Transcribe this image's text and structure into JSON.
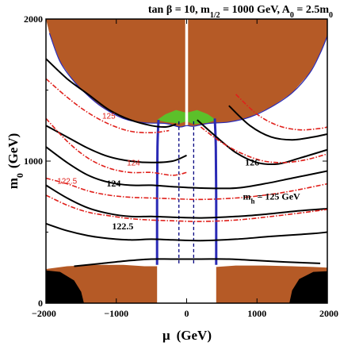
{
  "chart_data": {
    "type": "contour",
    "title_parts": {
      "t1": "tan β = 10, m",
      "t1_sub": "1/2",
      "t2": " = 1000 GeV, A",
      "t2_sub": "0",
      "t3": " = 2.5m",
      "t3_sub": "0"
    },
    "xlabel": "μ",
    "xlabel_unit": "(GeV)",
    "ylabel_main": "m",
    "ylabel_sub": "0",
    "ylabel_unit": "(GeV)",
    "xlim": [
      -2000,
      2000
    ],
    "ylim": [
      0,
      2000
    ],
    "x_ticks": [
      {
        "value": -2000,
        "label": "−2000"
      },
      {
        "value": -1000,
        "label": "−1000"
      },
      {
        "value": 0,
        "label": "0"
      },
      {
        "value": 1000,
        "label": "1000"
      },
      {
        "value": 2000,
        "label": "2000"
      }
    ],
    "y_ticks": [
      {
        "value": 0,
        "label": "0"
      },
      {
        "value": 1000,
        "label": "1000"
      },
      {
        "value": 2000,
        "label": "2000"
      }
    ],
    "colors": {
      "excluded": "#b55a26",
      "black_region": "#000000",
      "dark_matter_strip": "#2a2ab5",
      "green_region": "#5cc02a",
      "contour_black": "#000000",
      "contour_red": "#e0201b",
      "dashed_lines": "#000080"
    },
    "contour_labels": {
      "black": [
        {
          "text": "126",
          "x": 830,
          "y": 970
        },
        {
          "text": "124",
          "x": -1140,
          "y": 820
        },
        {
          "text": "122.5",
          "x": -1060,
          "y": 520
        }
      ],
      "mh": {
        "main": "m",
        "sub": "h",
        "rest": " = 125 GeV",
        "x": 800,
        "y": 730
      },
      "red": [
        {
          "text": "125",
          "x": -1200,
          "y": 1300
        },
        {
          "text": "124",
          "x": -850,
          "y": 970
        },
        {
          "text": "122.5",
          "x": -1840,
          "y": 840
        }
      ]
    },
    "contours": {
      "black": [
        [
          [
            -2000,
            1720
          ],
          [
            -1700,
            1580
          ],
          [
            -1400,
            1470
          ],
          [
            -1100,
            1360
          ],
          [
            -800,
            1290
          ],
          [
            -500,
            1250
          ],
          [
            -300,
            1240
          ],
          [
            -150,
            1260
          ]
        ],
        [
          [
            -2000,
            1250
          ],
          [
            -1700,
            1170
          ],
          [
            -1400,
            1090
          ],
          [
            -1100,
            1030
          ],
          [
            -800,
            1000
          ],
          [
            -500,
            990
          ],
          [
            -200,
            1000
          ],
          [
            0,
            1040
          ]
        ],
        [
          [
            -2000,
            1100
          ],
          [
            -1700,
            990
          ],
          [
            -1400,
            900
          ],
          [
            -1100,
            850
          ],
          [
            -800,
            830
          ],
          [
            -500,
            830
          ],
          [
            -200,
            820
          ],
          [
            200,
            810
          ],
          [
            700,
            810
          ],
          [
            1100,
            840
          ],
          [
            1500,
            880
          ],
          [
            2000,
            930
          ]
        ],
        [
          [
            -2000,
            830
          ],
          [
            -1700,
            740
          ],
          [
            -1400,
            670
          ],
          [
            -1100,
            630
          ],
          [
            -800,
            610
          ],
          [
            -500,
            610
          ],
          [
            -200,
            605
          ],
          [
            200,
            600
          ],
          [
            700,
            610
          ],
          [
            1100,
            625
          ],
          [
            1600,
            650
          ],
          [
            2000,
            665
          ]
        ],
        [
          [
            -2000,
            560
          ],
          [
            -1700,
            510
          ],
          [
            -1400,
            475
          ],
          [
            -1100,
            455
          ],
          [
            -800,
            445
          ],
          [
            -500,
            450
          ],
          [
            -200,
            445
          ],
          [
            200,
            440
          ],
          [
            700,
            450
          ],
          [
            1200,
            470
          ],
          [
            1800,
            490
          ],
          [
            2000,
            500
          ]
        ],
        [
          [
            -1600,
            260
          ],
          [
            -1200,
            280
          ],
          [
            -800,
            300
          ],
          [
            -500,
            310
          ],
          [
            -200,
            310
          ],
          [
            200,
            310
          ],
          [
            600,
            310
          ],
          [
            1000,
            300
          ],
          [
            1400,
            290
          ],
          [
            1900,
            280
          ]
        ],
        [
          [
            150,
            1290
          ],
          [
            400,
            1180
          ],
          [
            700,
            1060
          ],
          [
            1000,
            990
          ],
          [
            1300,
            980
          ],
          [
            1600,
            1020
          ],
          [
            2000,
            1080
          ]
        ],
        [
          [
            600,
            1390
          ],
          [
            900,
            1250
          ],
          [
            1200,
            1170
          ],
          [
            1500,
            1150
          ],
          [
            1800,
            1170
          ],
          [
            2000,
            1190
          ]
        ]
      ],
      "red": [
        [
          [
            -2000,
            1580
          ],
          [
            -1700,
            1450
          ],
          [
            -1400,
            1340
          ],
          [
            -1100,
            1260
          ],
          [
            -800,
            1210
          ],
          [
            -500,
            1200
          ],
          [
            -250,
            1215
          ]
        ],
        [
          [
            -2000,
            1300
          ],
          [
            -1700,
            1140
          ],
          [
            -1400,
            1020
          ],
          [
            -1100,
            950
          ],
          [
            -800,
            920
          ],
          [
            -500,
            920
          ],
          [
            -200,
            900
          ],
          [
            0,
            920
          ]
        ],
        [
          [
            -2000,
            880
          ],
          [
            -1700,
            840
          ],
          [
            -1400,
            790
          ],
          [
            -1100,
            760
          ],
          [
            -800,
            745
          ],
          [
            -500,
            740
          ],
          [
            -200,
            735
          ],
          [
            200,
            730
          ],
          [
            700,
            740
          ],
          [
            1100,
            760
          ],
          [
            1500,
            790
          ],
          [
            2000,
            840
          ]
        ],
        [
          [
            -2000,
            760
          ],
          [
            -1700,
            690
          ],
          [
            -1400,
            640
          ],
          [
            -1100,
            615
          ],
          [
            -800,
            595
          ],
          [
            -500,
            585
          ],
          [
            -200,
            580
          ],
          [
            200,
            575
          ],
          [
            700,
            585
          ],
          [
            1200,
            610
          ],
          [
            1700,
            640
          ],
          [
            2000,
            660
          ]
        ],
        [
          [
            200,
            1240
          ],
          [
            500,
            1130
          ],
          [
            800,
            1050
          ],
          [
            1100,
            1000
          ],
          [
            1400,
            990
          ],
          [
            1700,
            1010
          ],
          [
            2000,
            1050
          ]
        ],
        [
          [
            700,
            1470
          ],
          [
            1000,
            1330
          ],
          [
            1300,
            1250
          ],
          [
            1600,
            1220
          ],
          [
            1900,
            1230
          ],
          [
            2000,
            1240
          ]
        ]
      ]
    },
    "excluded_top": [
      [
        -2000,
        2000
      ],
      [
        -1950,
        1900
      ],
      [
        -1800,
        1700
      ],
      [
        -1600,
        1560
      ],
      [
        -1400,
        1460
      ],
      [
        -1200,
        1380
      ],
      [
        -900,
        1300
      ],
      [
        -600,
        1270
      ],
      [
        -300,
        1265
      ],
      [
        -100,
        1240
      ],
      [
        0,
        1250
      ],
      [
        100,
        1245
      ],
      [
        300,
        1265
      ],
      [
        600,
        1275
      ],
      [
        900,
        1310
      ],
      [
        1200,
        1380
      ],
      [
        1500,
        1480
      ],
      [
        1750,
        1620
      ],
      [
        1900,
        1760
      ],
      [
        2000,
        1880
      ],
      [
        2000,
        2000
      ]
    ],
    "excluded_bottom_left": [
      [
        -2000,
        0
      ],
      [
        -2000,
        240
      ],
      [
        -1700,
        260
      ],
      [
        -1300,
        270
      ],
      [
        -900,
        270
      ],
      [
        -600,
        260
      ],
      [
        -420,
        260
      ],
      [
        -420,
        0
      ]
    ],
    "excluded_bottom_right": [
      [
        420,
        0
      ],
      [
        420,
        255
      ],
      [
        700,
        265
      ],
      [
        1100,
        265
      ],
      [
        1500,
        260
      ],
      [
        1800,
        255
      ],
      [
        2000,
        250
      ],
      [
        2000,
        0
      ]
    ],
    "black_bottom_left": [
      [
        -2000,
        0
      ],
      [
        -2000,
        230
      ],
      [
        -1800,
        220
      ],
      [
        -1600,
        160
      ],
      [
        -1500,
        80
      ],
      [
        -1460,
        0
      ]
    ],
    "black_bottom_right": [
      [
        1460,
        0
      ],
      [
        1500,
        90
      ],
      [
        1600,
        170
      ],
      [
        1800,
        220
      ],
      [
        2000,
        225
      ],
      [
        2000,
        0
      ]
    ],
    "blue_strips": [
      [
        [
          -420,
          270
        ],
        [
          -420,
          700
        ],
        [
          -415,
          1100
        ],
        [
          -400,
          1290
        ]
      ],
      [
        [
          420,
          270
        ],
        [
          420,
          700
        ],
        [
          415,
          1100
        ],
        [
          400,
          1300
        ]
      ]
    ],
    "dashed_verticals": [
      -110,
      100
    ],
    "white_band": [
      -20,
      20
    ],
    "green_blob": [
      [
        -420,
        1290
      ],
      [
        -300,
        1330
      ],
      [
        -150,
        1360
      ],
      [
        0,
        1340
      ],
      [
        150,
        1360
      ],
      [
        300,
        1330
      ],
      [
        420,
        1290
      ],
      [
        300,
        1270
      ],
      [
        100,
        1260
      ],
      [
        0,
        1280
      ],
      [
        -100,
        1265
      ],
      [
        -300,
        1275
      ]
    ]
  }
}
